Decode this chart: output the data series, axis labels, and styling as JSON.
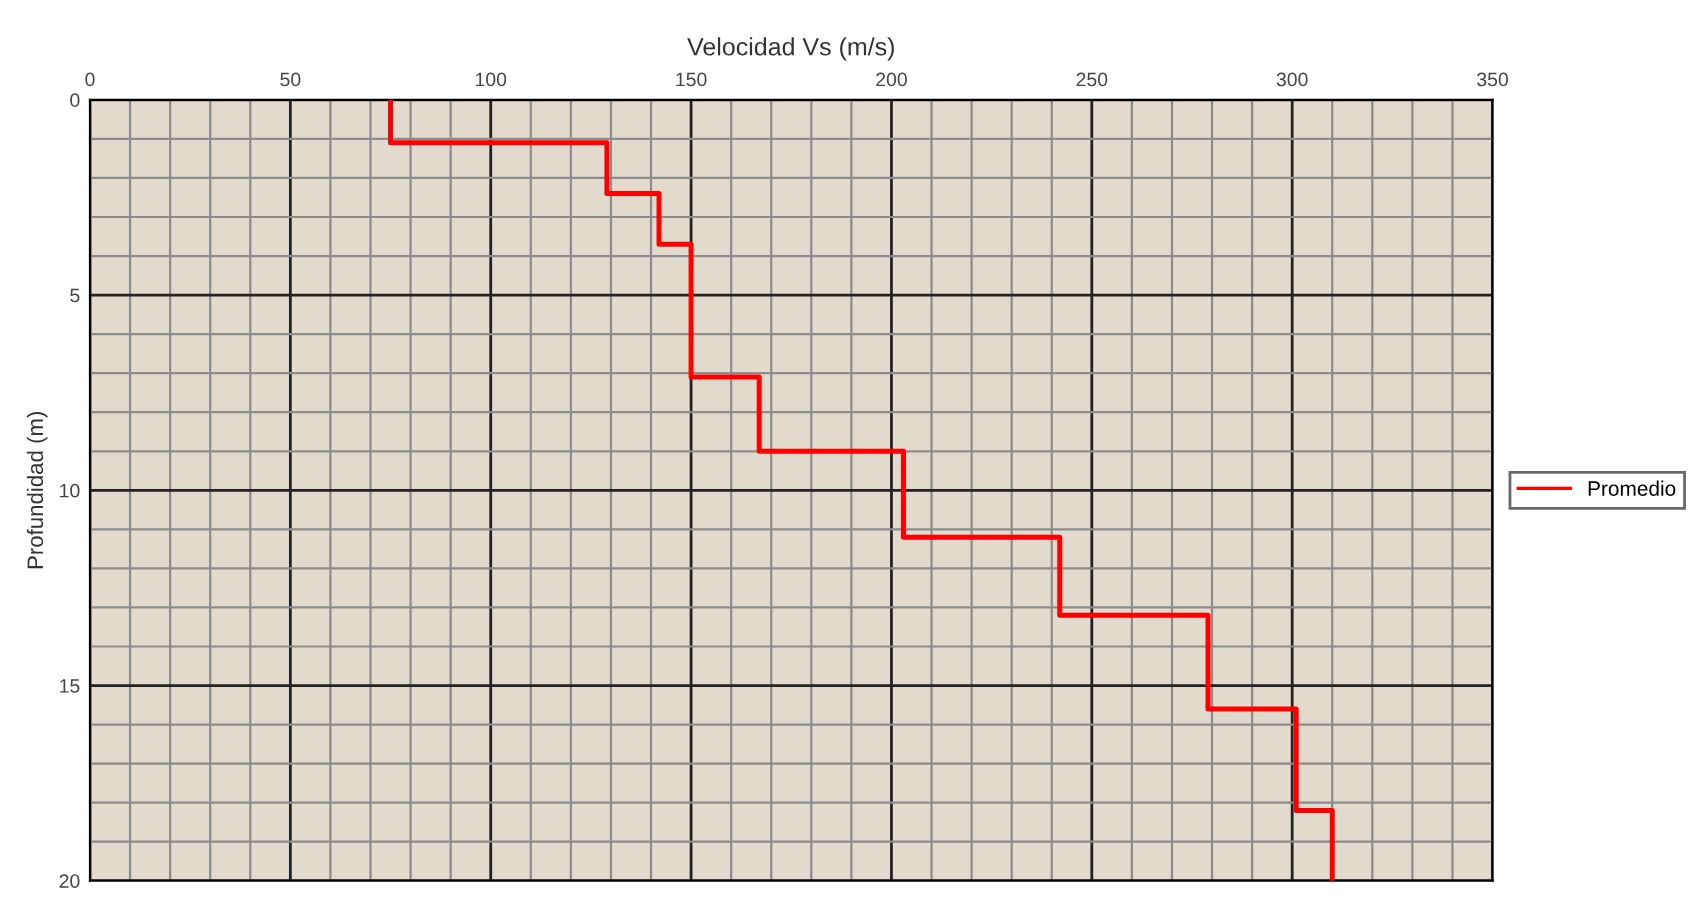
{
  "chart_data": {
    "type": "line",
    "xlabel": "Velocidad Vs (m/s)",
    "ylabel": "Profundidad (m)",
    "xlim": [
      0,
      350
    ],
    "ylim": [
      20,
      0
    ],
    "xticks": [
      0,
      {
        "value": 10,
        "label": null
      },
      {
        "value": 20,
        "label": null
      },
      {
        "value": 30,
        "label": null
      },
      {
        "value": 40,
        "label": null
      },
      50,
      {
        "value": 60,
        "label": null
      },
      {
        "value": 70,
        "label": null
      },
      {
        "value": 80,
        "label": null
      },
      {
        "value": 90,
        "label": null
      },
      100,
      {
        "value": 110,
        "label": null
      },
      {
        "value": 120,
        "label": null
      },
      {
        "value": 130,
        "label": null
      },
      {
        "value": 140,
        "label": null
      },
      150,
      {
        "value": 160,
        "label": null
      },
      {
        "value": 170,
        "label": null
      },
      {
        "value": 180,
        "label": null
      },
      {
        "value": 190,
        "label": null
      },
      200,
      {
        "value": 210,
        "label": null
      },
      {
        "value": 220,
        "label": null
      },
      {
        "value": 230,
        "label": null
      },
      {
        "value": 240,
        "label": null
      },
      250,
      {
        "value": 260,
        "label": null
      },
      {
        "value": 270,
        "label": null
      },
      {
        "value": 280,
        "label": null
      },
      {
        "value": 290,
        "label": null
      },
      300,
      {
        "value": 310,
        "label": null
      },
      {
        "value": 320,
        "label": null
      },
      {
        "value": 330,
        "label": null
      },
      {
        "value": 340,
        "label": null
      },
      350
    ],
    "yticks": [
      0,
      {
        "value": 1,
        "label": null
      },
      {
        "value": 2,
        "label": null
      },
      {
        "value": 3,
        "label": null
      },
      {
        "value": 4,
        "label": null
      },
      5,
      {
        "value": 6,
        "label": null
      },
      {
        "value": 7,
        "label": null
      },
      {
        "value": 8,
        "label": null
      },
      {
        "value": 9,
        "label": null
      },
      10,
      {
        "value": 11,
        "label": null
      },
      {
        "value": 12,
        "label": null
      },
      {
        "value": 13,
        "label": null
      },
      {
        "value": 14,
        "label": null
      },
      15,
      {
        "value": 16,
        "label": null
      },
      {
        "value": 17,
        "label": null
      },
      {
        "value": 18,
        "label": null
      },
      {
        "value": 19,
        "label": null
      },
      20
    ],
    "grid": true,
    "legend": "right",
    "marker": "none",
    "line_style": "solid",
    "series": [
      {
        "name": "Promedio",
        "color": "#ff0000",
        "x": [
          75,
          75,
          129,
          129,
          142,
          142,
          150,
          150,
          167,
          167,
          203,
          203,
          242,
          242,
          279,
          279,
          301,
          301,
          310,
          310
        ],
        "values": [
          0,
          1.1,
          1.1,
          2.4,
          2.4,
          3.7,
          3.7,
          7.1,
          7.1,
          9.0,
          9.0,
          11.2,
          11.2,
          13.2,
          13.2,
          15.6,
          15.6,
          18.2,
          18.2,
          20
        ]
      }
    ]
  }
}
